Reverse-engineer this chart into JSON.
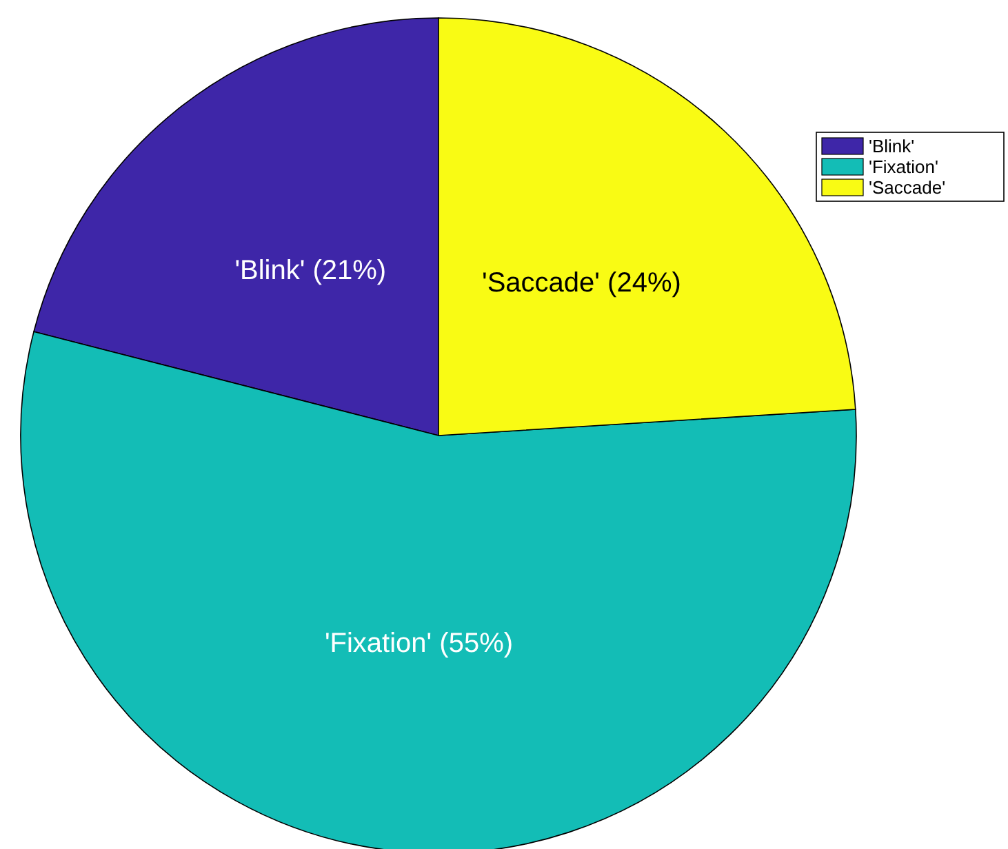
{
  "chart_data": {
    "type": "pie",
    "categories": [
      "'Blink'",
      "'Fixation'",
      "'Saccade'"
    ],
    "values": [
      21,
      55,
      24
    ],
    "colors": [
      "#3e26a8",
      "#13bdb6",
      "#f9fb14"
    ],
    "value_labels": [
      "'Blink' (21%)",
      "'Fixation' (55%)",
      "'Saccade' (24%)"
    ],
    "legend": "top right"
  }
}
